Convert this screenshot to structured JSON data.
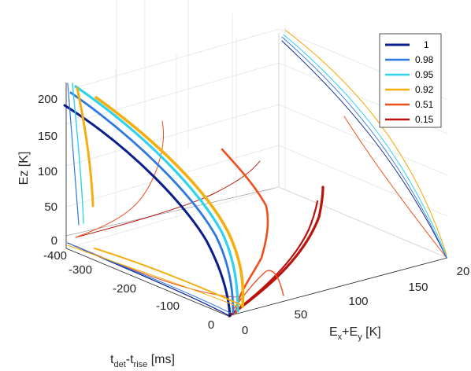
{
  "chart_data": {
    "type": "line",
    "projection": "3d",
    "grid": true,
    "legend_position": "top-right",
    "x_axis": {
      "label": "Eₓ+Eᵧ [K]",
      "label_main": "E",
      "label_sub1": "x",
      "label_mid": "+E",
      "label_sub2": "y",
      "label_tail": " [K]",
      "ticks": [
        "0",
        "50",
        "100",
        "150",
        "20"
      ],
      "range": [
        0,
        200
      ]
    },
    "y_axis": {
      "label_main": "t",
      "label_sub1": "det",
      "label_mid": "-t",
      "label_sub2": "rise",
      "label_tail": " [ms]",
      "ticks": [
        "0",
        "-100",
        "-200",
        "-300",
        "-400"
      ],
      "range": [
        -400,
        0
      ]
    },
    "z_axis": {
      "label": "Ez [K]",
      "ticks": [
        "0",
        "50",
        "100",
        "150",
        "200"
      ],
      "range": [
        0,
        220
      ]
    },
    "series": [
      {
        "name": "1",
        "color": "#0a1f8c"
      },
      {
        "name": "0.98",
        "color": "#2f78e0"
      },
      {
        "name": "0.95",
        "color": "#2fd3ec"
      },
      {
        "name": "0.92",
        "color": "#f4ae0f"
      },
      {
        "name": "0.51",
        "color": "#ee4f1c"
      },
      {
        "name": "0.15",
        "color": "#b9130c"
      }
    ]
  }
}
